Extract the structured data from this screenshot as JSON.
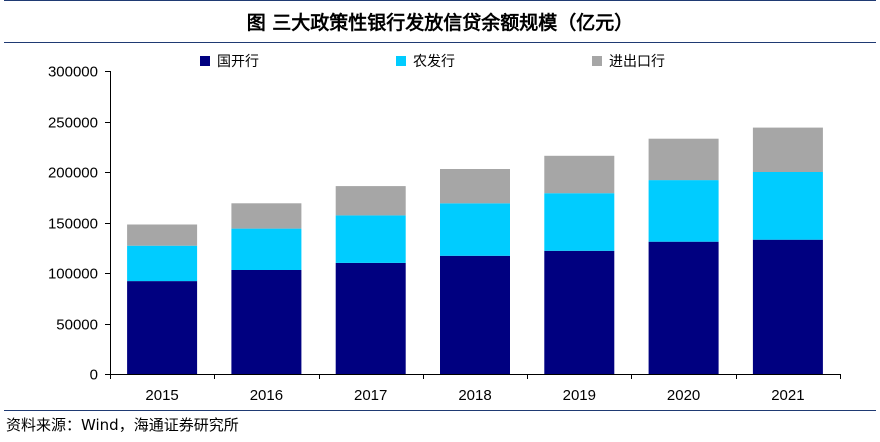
{
  "title": "图  三大政策性银行发放信贷余额规模（亿元）",
  "source": "资料来源：Wind，海通证券研究所",
  "colors": {
    "frame": "#000000",
    "border": "#1f3a73"
  },
  "chart_data": {
    "type": "bar",
    "stacked": true,
    "title": "图  三大政策性银行发放信贷余额规模（亿元）",
    "xlabel": "",
    "ylabel": "",
    "categories": [
      "2015",
      "2016",
      "2017",
      "2018",
      "2019",
      "2020",
      "2021"
    ],
    "ylim": [
      0,
      300000
    ],
    "yticks": [
      0,
      50000,
      100000,
      150000,
      200000,
      250000,
      300000
    ],
    "ytick_labels": [
      "0",
      "50000",
      "100000",
      "150000",
      "200000",
      "250000",
      "300000"
    ],
    "grid": false,
    "legend_position": "top",
    "series": [
      {
        "name": "国开行",
        "color": "#000080",
        "values": [
          92000,
          103000,
          110000,
          117000,
          122000,
          131000,
          133000
        ]
      },
      {
        "name": "农发行",
        "color": "#00CCFF",
        "values": [
          35000,
          41000,
          47000,
          52000,
          57000,
          61000,
          67000
        ]
      },
      {
        "name": "进出口行",
        "color": "#A6A6A6",
        "values": [
          21000,
          25000,
          29000,
          34000,
          37000,
          41000,
          44000
        ]
      }
    ]
  }
}
